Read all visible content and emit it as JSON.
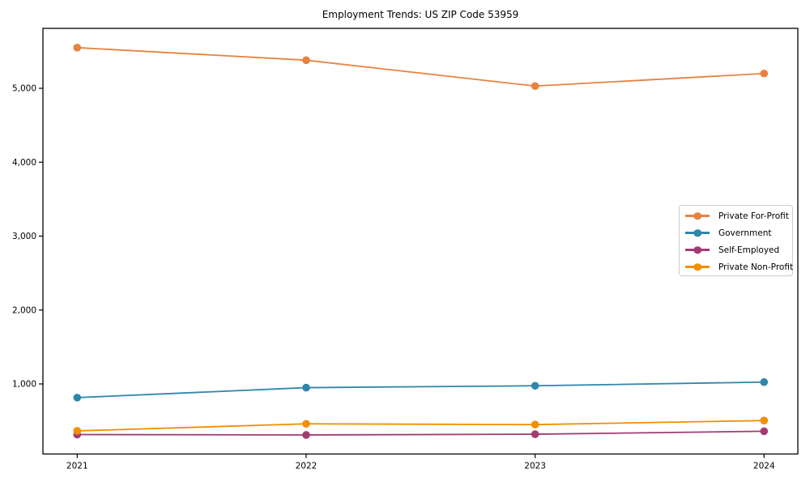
{
  "chart_data": {
    "type": "line",
    "title": "Employment Trends: US ZIP Code 53959",
    "categories": [
      "2021",
      "2022",
      "2023",
      "2024"
    ],
    "series": [
      {
        "name": "Private For-Profit",
        "color": "#E8823E",
        "values": [
          5550,
          5380,
          5030,
          5200
        ]
      },
      {
        "name": "Government",
        "color": "#2E86AB",
        "values": [
          815,
          950,
          975,
          1025
        ]
      },
      {
        "name": "Self-Employed",
        "color": "#A23B72",
        "values": [
          315,
          310,
          320,
          360
        ]
      },
      {
        "name": "Private Non-Profit",
        "color": "#F18F01",
        "values": [
          365,
          460,
          450,
          505
        ]
      }
    ],
    "xlabel": "",
    "ylabel": "",
    "y_ticks": [
      {
        "value": 1000,
        "label": "1,000"
      },
      {
        "value": 2000,
        "label": "2,000"
      },
      {
        "value": 3000,
        "label": "3,000"
      },
      {
        "value": 4000,
        "label": "4,000"
      },
      {
        "value": 5000,
        "label": "5,000"
      }
    ],
    "ylim": [
      50,
      5810
    ],
    "grid": false,
    "legend_position": "center right",
    "marker": "circle",
    "axis_color": "#000000"
  }
}
